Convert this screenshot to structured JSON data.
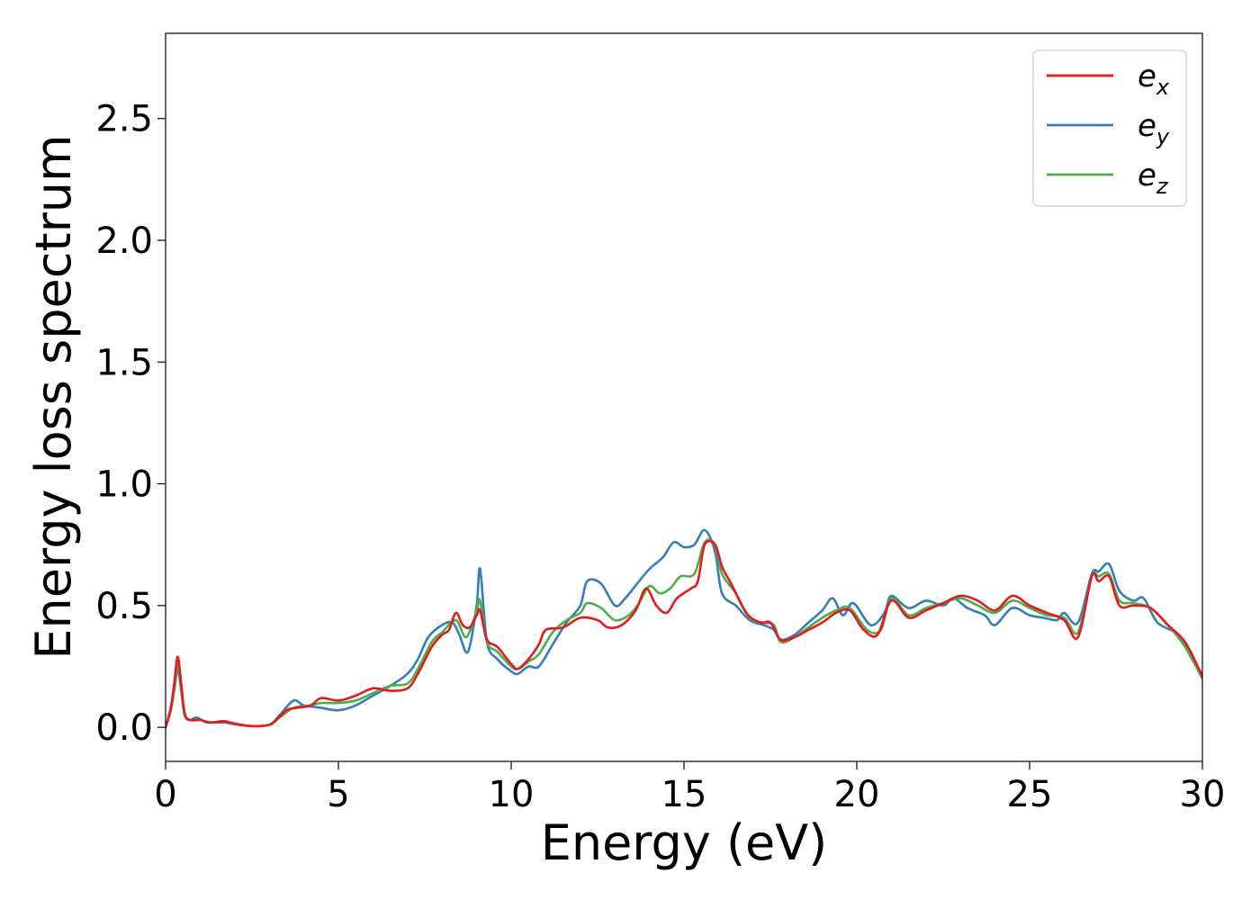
{
  "chart_data": {
    "type": "line",
    "title": "",
    "xlabel": "Energy (eV)",
    "ylabel": "Energy loss spectrum",
    "xlim": [
      0,
      30
    ],
    "ylim": [
      -0.14,
      2.85
    ],
    "xticks": [
      0,
      5,
      10,
      15,
      20,
      25,
      30
    ],
    "xtick_labels": [
      "0",
      "5",
      "10",
      "15",
      "20",
      "25",
      "30"
    ],
    "yticks": [
      0.0,
      0.5,
      1.0,
      1.5,
      2.0,
      2.5
    ],
    "ytick_labels": [
      "0.0",
      "0.5",
      "1.0",
      "1.5",
      "2.0",
      "2.5"
    ],
    "grid": false,
    "legend_position": "top-right",
    "series": [
      {
        "name": "e_x",
        "legend_base": "e",
        "legend_sub": "x",
        "color": "#e41a1c",
        "points": [
          [
            0,
            0.0
          ],
          [
            0.15,
            0.08
          ],
          [
            0.25,
            0.18
          ],
          [
            0.35,
            0.29
          ],
          [
            0.45,
            0.18
          ],
          [
            0.55,
            0.06
          ],
          [
            0.7,
            0.03
          ],
          [
            1.0,
            0.03
          ],
          [
            1.3,
            0.02
          ],
          [
            1.7,
            0.025
          ],
          [
            2.0,
            0.015
          ],
          [
            2.5,
            0.005
          ],
          [
            3.0,
            0.01
          ],
          [
            3.2,
            0.03
          ],
          [
            3.5,
            0.07
          ],
          [
            3.8,
            0.08
          ],
          [
            4.2,
            0.09
          ],
          [
            4.5,
            0.12
          ],
          [
            5.0,
            0.11
          ],
          [
            5.5,
            0.13
          ],
          [
            6.0,
            0.16
          ],
          [
            6.5,
            0.15
          ],
          [
            7.0,
            0.16
          ],
          [
            7.3,
            0.22
          ],
          [
            7.7,
            0.33
          ],
          [
            8.0,
            0.38
          ],
          [
            8.2,
            0.4
          ],
          [
            8.4,
            0.47
          ],
          [
            8.6,
            0.42
          ],
          [
            8.8,
            0.41
          ],
          [
            9.0,
            0.46
          ],
          [
            9.1,
            0.48
          ],
          [
            9.3,
            0.36
          ],
          [
            9.6,
            0.33
          ],
          [
            10.0,
            0.26
          ],
          [
            10.2,
            0.24
          ],
          [
            10.5,
            0.28
          ],
          [
            10.8,
            0.34
          ],
          [
            11.0,
            0.4
          ],
          [
            11.5,
            0.41
          ],
          [
            12.0,
            0.45
          ],
          [
            12.5,
            0.44
          ],
          [
            12.8,
            0.41
          ],
          [
            13.2,
            0.42
          ],
          [
            13.6,
            0.48
          ],
          [
            13.9,
            0.57
          ],
          [
            14.2,
            0.5
          ],
          [
            14.5,
            0.47
          ],
          [
            14.8,
            0.53
          ],
          [
            15.2,
            0.57
          ],
          [
            15.4,
            0.6
          ],
          [
            15.6,
            0.75
          ],
          [
            15.9,
            0.75
          ],
          [
            16.1,
            0.66
          ],
          [
            16.4,
            0.58
          ],
          [
            16.8,
            0.47
          ],
          [
            17.2,
            0.43
          ],
          [
            17.5,
            0.43
          ],
          [
            17.8,
            0.36
          ],
          [
            18.2,
            0.37
          ],
          [
            18.6,
            0.4
          ],
          [
            19.0,
            0.43
          ],
          [
            19.4,
            0.47
          ],
          [
            19.8,
            0.48
          ],
          [
            20.2,
            0.4
          ],
          [
            20.6,
            0.38
          ],
          [
            21.0,
            0.52
          ],
          [
            21.5,
            0.45
          ],
          [
            22.0,
            0.48
          ],
          [
            22.5,
            0.51
          ],
          [
            23.0,
            0.54
          ],
          [
            23.5,
            0.52
          ],
          [
            24.0,
            0.48
          ],
          [
            24.5,
            0.54
          ],
          [
            25.0,
            0.5
          ],
          [
            25.5,
            0.47
          ],
          [
            26.0,
            0.44
          ],
          [
            26.4,
            0.37
          ],
          [
            26.8,
            0.62
          ],
          [
            27.0,
            0.6
          ],
          [
            27.3,
            0.62
          ],
          [
            27.6,
            0.5
          ],
          [
            28.0,
            0.5
          ],
          [
            28.5,
            0.49
          ],
          [
            29.0,
            0.42
          ],
          [
            29.5,
            0.35
          ],
          [
            30.0,
            0.21
          ]
        ]
      },
      {
        "name": "e_y",
        "legend_base": "e",
        "legend_sub": "y",
        "color": "#377eb8",
        "points": [
          [
            0,
            0.0
          ],
          [
            0.15,
            0.07
          ],
          [
            0.25,
            0.15
          ],
          [
            0.35,
            0.24
          ],
          [
            0.45,
            0.15
          ],
          [
            0.55,
            0.05
          ],
          [
            0.7,
            0.03
          ],
          [
            0.9,
            0.04
          ],
          [
            1.2,
            0.02
          ],
          [
            1.7,
            0.02
          ],
          [
            2.0,
            0.012
          ],
          [
            2.5,
            0.005
          ],
          [
            3.0,
            0.01
          ],
          [
            3.3,
            0.05
          ],
          [
            3.7,
            0.11
          ],
          [
            4.0,
            0.09
          ],
          [
            4.5,
            0.08
          ],
          [
            5.0,
            0.07
          ],
          [
            5.5,
            0.09
          ],
          [
            6.0,
            0.13
          ],
          [
            6.5,
            0.17
          ],
          [
            7.0,
            0.22
          ],
          [
            7.3,
            0.28
          ],
          [
            7.6,
            0.37
          ],
          [
            8.0,
            0.42
          ],
          [
            8.3,
            0.43
          ],
          [
            8.5,
            0.38
          ],
          [
            8.75,
            0.31
          ],
          [
            9.0,
            0.5
          ],
          [
            9.1,
            0.65
          ],
          [
            9.3,
            0.35
          ],
          [
            9.6,
            0.28
          ],
          [
            10.0,
            0.23
          ],
          [
            10.2,
            0.22
          ],
          [
            10.5,
            0.25
          ],
          [
            10.8,
            0.25
          ],
          [
            11.2,
            0.34
          ],
          [
            11.6,
            0.43
          ],
          [
            12.0,
            0.5
          ],
          [
            12.2,
            0.6
          ],
          [
            12.6,
            0.59
          ],
          [
            13.0,
            0.5
          ],
          [
            13.3,
            0.53
          ],
          [
            13.7,
            0.6
          ],
          [
            14.0,
            0.65
          ],
          [
            14.4,
            0.7
          ],
          [
            14.7,
            0.76
          ],
          [
            15.0,
            0.74
          ],
          [
            15.3,
            0.75
          ],
          [
            15.6,
            0.81
          ],
          [
            15.9,
            0.72
          ],
          [
            16.1,
            0.55
          ],
          [
            16.5,
            0.5
          ],
          [
            16.9,
            0.44
          ],
          [
            17.3,
            0.42
          ],
          [
            17.6,
            0.4
          ],
          [
            17.8,
            0.36
          ],
          [
            18.2,
            0.38
          ],
          [
            18.6,
            0.43
          ],
          [
            19.0,
            0.48
          ],
          [
            19.3,
            0.53
          ],
          [
            19.6,
            0.46
          ],
          [
            19.9,
            0.51
          ],
          [
            20.4,
            0.42
          ],
          [
            20.8,
            0.47
          ],
          [
            21.0,
            0.54
          ],
          [
            21.5,
            0.49
          ],
          [
            22.0,
            0.52
          ],
          [
            22.5,
            0.5
          ],
          [
            22.8,
            0.53
          ],
          [
            23.2,
            0.49
          ],
          [
            23.7,
            0.46
          ],
          [
            24.0,
            0.42
          ],
          [
            24.5,
            0.49
          ],
          [
            25.0,
            0.46
          ],
          [
            25.4,
            0.45
          ],
          [
            25.8,
            0.44
          ],
          [
            26.0,
            0.47
          ],
          [
            26.4,
            0.43
          ],
          [
            26.8,
            0.63
          ],
          [
            27.0,
            0.64
          ],
          [
            27.3,
            0.67
          ],
          [
            27.6,
            0.56
          ],
          [
            28.0,
            0.52
          ],
          [
            28.3,
            0.53
          ],
          [
            28.7,
            0.43
          ],
          [
            29.3,
            0.38
          ],
          [
            29.7,
            0.28
          ],
          [
            30.0,
            0.21
          ]
        ]
      },
      {
        "name": "e_z",
        "legend_base": "e",
        "legend_sub": "z",
        "color": "#4daf4a",
        "points": [
          [
            0,
            0.0
          ],
          [
            0.15,
            0.07
          ],
          [
            0.25,
            0.16
          ],
          [
            0.35,
            0.26
          ],
          [
            0.45,
            0.16
          ],
          [
            0.55,
            0.05
          ],
          [
            0.7,
            0.03
          ],
          [
            1.0,
            0.03
          ],
          [
            1.3,
            0.02
          ],
          [
            1.7,
            0.025
          ],
          [
            2.0,
            0.015
          ],
          [
            2.5,
            0.005
          ],
          [
            3.0,
            0.01
          ],
          [
            3.3,
            0.04
          ],
          [
            3.7,
            0.08
          ],
          [
            4.2,
            0.09
          ],
          [
            4.5,
            0.1
          ],
          [
            5.0,
            0.1
          ],
          [
            5.5,
            0.11
          ],
          [
            6.0,
            0.14
          ],
          [
            6.5,
            0.17
          ],
          [
            7.0,
            0.18
          ],
          [
            7.3,
            0.24
          ],
          [
            7.7,
            0.35
          ],
          [
            8.0,
            0.39
          ],
          [
            8.4,
            0.44
          ],
          [
            8.7,
            0.37
          ],
          [
            9.0,
            0.48
          ],
          [
            9.1,
            0.52
          ],
          [
            9.3,
            0.35
          ],
          [
            9.6,
            0.31
          ],
          [
            10.0,
            0.25
          ],
          [
            10.2,
            0.24
          ],
          [
            10.5,
            0.27
          ],
          [
            10.8,
            0.3
          ],
          [
            11.2,
            0.39
          ],
          [
            11.6,
            0.44
          ],
          [
            12.0,
            0.47
          ],
          [
            12.2,
            0.51
          ],
          [
            12.6,
            0.49
          ],
          [
            13.0,
            0.44
          ],
          [
            13.4,
            0.46
          ],
          [
            13.7,
            0.51
          ],
          [
            14.0,
            0.58
          ],
          [
            14.3,
            0.55
          ],
          [
            14.6,
            0.57
          ],
          [
            14.9,
            0.62
          ],
          [
            15.3,
            0.63
          ],
          [
            15.6,
            0.76
          ],
          [
            15.9,
            0.75
          ],
          [
            16.1,
            0.63
          ],
          [
            16.5,
            0.55
          ],
          [
            16.9,
            0.45
          ],
          [
            17.3,
            0.43
          ],
          [
            17.6,
            0.42
          ],
          [
            17.8,
            0.35
          ],
          [
            18.2,
            0.37
          ],
          [
            18.6,
            0.41
          ],
          [
            19.0,
            0.45
          ],
          [
            19.4,
            0.48
          ],
          [
            19.8,
            0.49
          ],
          [
            20.3,
            0.4
          ],
          [
            20.7,
            0.4
          ],
          [
            21.0,
            0.53
          ],
          [
            21.5,
            0.46
          ],
          [
            22.0,
            0.49
          ],
          [
            22.5,
            0.51
          ],
          [
            23.0,
            0.53
          ],
          [
            23.5,
            0.5
          ],
          [
            24.0,
            0.47
          ],
          [
            24.5,
            0.52
          ],
          [
            25.0,
            0.49
          ],
          [
            25.5,
            0.46
          ],
          [
            26.0,
            0.45
          ],
          [
            26.4,
            0.39
          ],
          [
            26.8,
            0.62
          ],
          [
            27.0,
            0.62
          ],
          [
            27.3,
            0.63
          ],
          [
            27.6,
            0.52
          ],
          [
            28.0,
            0.51
          ],
          [
            28.5,
            0.49
          ],
          [
            29.0,
            0.42
          ],
          [
            29.5,
            0.33
          ],
          [
            30.0,
            0.2
          ]
        ]
      }
    ]
  }
}
